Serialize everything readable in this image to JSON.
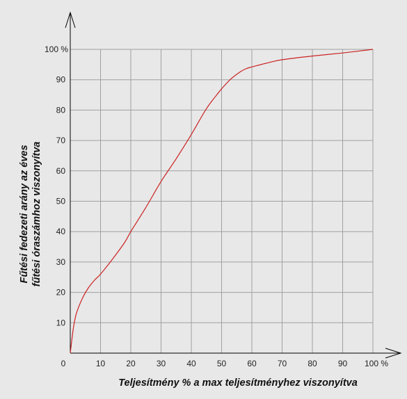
{
  "chart_data": {
    "type": "line",
    "xlabel": "Teljesítmény % a max teljesítményhez viszonyítva",
    "ylabel_line1": "Fűtési fedezeti arány az éves",
    "ylabel_line2": "fűtési óraszámhoz viszonyítva",
    "xlim": [
      0,
      100
    ],
    "ylim": [
      0,
      100
    ],
    "grid": true,
    "x_ticks": [
      "0",
      "10",
      "20",
      "30",
      "40",
      "50",
      "60",
      "70",
      "80",
      "90",
      "100 %"
    ],
    "y_ticks": [
      "10",
      "20",
      "30",
      "40",
      "50",
      "60",
      "70",
      "80",
      "90",
      "100 %"
    ],
    "line_color": "#cc2222",
    "grid_color": "#a0a0a0",
    "series": [
      {
        "x": [
          0,
          1,
          2,
          4,
          6,
          8,
          10,
          14,
          18,
          20,
          25,
          30,
          35,
          40,
          45,
          48,
          50,
          53,
          56,
          58,
          60,
          65,
          70,
          80,
          90,
          100
        ],
        "y": [
          0,
          8,
          13,
          18,
          21.5,
          24,
          26,
          31,
          36.5,
          40,
          48,
          56.5,
          64,
          72,
          80.5,
          84.5,
          87,
          90.2,
          92.5,
          93.6,
          94.2,
          95.5,
          96.6,
          97.8,
          98.8,
          100
        ]
      }
    ]
  }
}
